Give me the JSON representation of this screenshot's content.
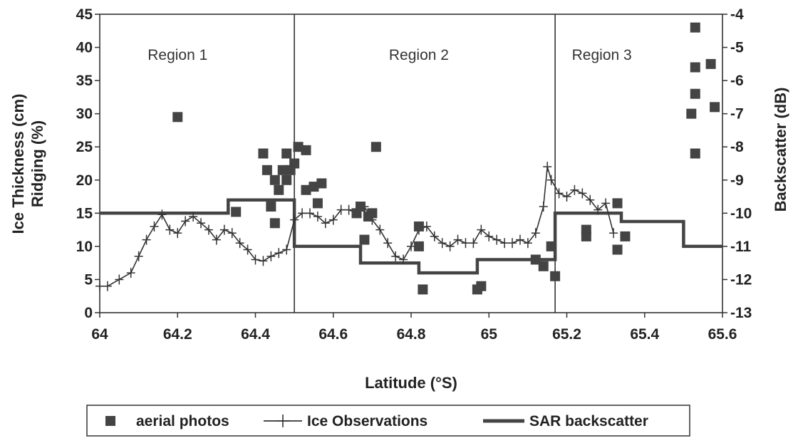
{
  "chart_data": {
    "type": "scatter",
    "title": "",
    "xlabel": "Latitude (°S)",
    "ylabel": [
      "Ice Thickness (cm)",
      "Ridging (%)"
    ],
    "y2label": "Backscatter (dB)",
    "xlim": [
      64,
      65.6
    ],
    "ylim": [
      0,
      45
    ],
    "y2lim": [
      -13,
      -4
    ],
    "x_ticks": [
      "64",
      "64.2",
      "64.4",
      "64.6",
      "64.8",
      "65",
      "65.2",
      "65.4",
      "65.6"
    ],
    "y_ticks": [
      "0",
      "5",
      "10",
      "15",
      "20",
      "25",
      "30",
      "35",
      "40",
      "45"
    ],
    "y2_ticks": [
      "-13",
      "-12",
      "-11",
      "-10",
      "-9",
      "-8",
      "-7",
      "-6",
      "-5",
      "-4"
    ],
    "region_boundaries": [
      64.5,
      65.17
    ],
    "regions": [
      {
        "label": "Region 1",
        "x": 64.2
      },
      {
        "label": "Region 2",
        "x": 64.82
      },
      {
        "label": "Region 3",
        "x": 65.29
      }
    ],
    "grid": false,
    "legend_position": "bottom",
    "series": [
      {
        "name": "aerial photos",
        "kind": "scatter",
        "axis": "left",
        "points": [
          [
            64.2,
            29.5
          ],
          [
            64.35,
            15.2
          ],
          [
            64.42,
            24
          ],
          [
            64.43,
            21.5
          ],
          [
            64.44,
            16
          ],
          [
            64.45,
            13.5
          ],
          [
            64.45,
            20
          ],
          [
            64.46,
            18.5
          ],
          [
            64.47,
            21.5
          ],
          [
            64.48,
            24
          ],
          [
            64.48,
            20
          ],
          [
            64.49,
            21.5
          ],
          [
            64.5,
            22.5
          ],
          [
            64.51,
            25
          ],
          [
            64.53,
            24.5
          ],
          [
            64.53,
            18.5
          ],
          [
            64.55,
            19
          ],
          [
            64.57,
            19.5
          ],
          [
            64.56,
            16.5
          ],
          [
            64.66,
            15
          ],
          [
            64.67,
            16
          ],
          [
            64.68,
            11
          ],
          [
            64.69,
            14.5
          ],
          [
            64.71,
            25
          ],
          [
            64.7,
            15
          ],
          [
            64.82,
            10
          ],
          [
            64.82,
            13
          ],
          [
            64.83,
            3.5
          ],
          [
            64.97,
            3.5
          ],
          [
            64.98,
            4
          ],
          [
            65.12,
            8
          ],
          [
            65.14,
            7
          ],
          [
            65.16,
            10
          ],
          [
            65.17,
            5.5
          ],
          [
            65.25,
            11.5
          ],
          [
            65.25,
            12.5
          ],
          [
            65.33,
            9.5
          ],
          [
            65.33,
            16.5
          ],
          [
            65.35,
            11.5
          ],
          [
            65.52,
            30
          ],
          [
            65.53,
            33
          ],
          [
            65.53,
            37
          ],
          [
            65.53,
            24
          ],
          [
            65.53,
            43
          ],
          [
            65.57,
            37.5
          ],
          [
            65.58,
            31
          ]
        ]
      },
      {
        "name": "Ice Observations",
        "kind": "line-with-plus",
        "axis": "left",
        "points": [
          [
            64,
            4
          ],
          [
            64.02,
            4
          ],
          [
            64.05,
            5
          ],
          [
            64.08,
            6
          ],
          [
            64.1,
            8.5
          ],
          [
            64.12,
            11
          ],
          [
            64.14,
            13
          ],
          [
            64.16,
            14.8
          ],
          [
            64.18,
            12.5
          ],
          [
            64.2,
            12
          ],
          [
            64.22,
            13.8
          ],
          [
            64.24,
            14.5
          ],
          [
            64.26,
            13.5
          ],
          [
            64.28,
            12.5
          ],
          [
            64.3,
            11
          ],
          [
            64.32,
            12.5
          ],
          [
            64.34,
            12
          ],
          [
            64.36,
            10.5
          ],
          [
            64.38,
            9.5
          ],
          [
            64.4,
            8
          ],
          [
            64.42,
            7.8
          ],
          [
            64.44,
            8.5
          ],
          [
            64.46,
            9
          ],
          [
            64.48,
            9.5
          ],
          [
            64.5,
            14
          ],
          [
            64.52,
            15
          ],
          [
            64.54,
            15
          ],
          [
            64.56,
            14.5
          ],
          [
            64.58,
            13.5
          ],
          [
            64.6,
            14
          ],
          [
            64.62,
            15.5
          ],
          [
            64.64,
            15.5
          ],
          [
            64.66,
            15
          ],
          [
            64.68,
            16
          ],
          [
            64.7,
            14
          ],
          [
            64.72,
            12.5
          ],
          [
            64.74,
            10.5
          ],
          [
            64.76,
            8.5
          ],
          [
            64.78,
            8
          ],
          [
            64.8,
            10
          ],
          [
            64.82,
            12.5
          ],
          [
            64.84,
            13
          ],
          [
            64.86,
            11.5
          ],
          [
            64.88,
            10.5
          ],
          [
            64.9,
            10
          ],
          [
            64.92,
            11
          ],
          [
            64.94,
            10.5
          ],
          [
            64.96,
            10.5
          ],
          [
            64.98,
            12.5
          ],
          [
            65,
            11.5
          ],
          [
            65.02,
            11
          ],
          [
            65.04,
            10.5
          ],
          [
            65.06,
            10.5
          ],
          [
            65.08,
            11
          ],
          [
            65.1,
            10.5
          ],
          [
            65.12,
            12
          ],
          [
            65.14,
            16
          ],
          [
            65.15,
            22
          ],
          [
            65.16,
            20
          ],
          [
            65.18,
            18
          ],
          [
            65.2,
            17.5
          ],
          [
            65.22,
            18.5
          ],
          [
            65.24,
            18
          ],
          [
            65.26,
            17
          ],
          [
            65.28,
            15.5
          ],
          [
            65.3,
            16.5
          ],
          [
            65.32,
            12
          ]
        ]
      },
      {
        "name": "SAR backscatter",
        "kind": "step",
        "axis": "right",
        "points": [
          [
            64,
            -10
          ],
          [
            64.33,
            -10
          ],
          [
            64.33,
            -9.6
          ],
          [
            64.5,
            -9.6
          ],
          [
            64.5,
            -11
          ],
          [
            64.67,
            -11
          ],
          [
            64.67,
            -11.5
          ],
          [
            64.82,
            -11.5
          ],
          [
            64.82,
            -11.8
          ],
          [
            64.97,
            -11.8
          ],
          [
            64.97,
            -11.4
          ],
          [
            65.17,
            -11.4
          ],
          [
            65.17,
            -10
          ],
          [
            65.34,
            -10
          ],
          [
            65.34,
            -10.25
          ],
          [
            65.5,
            -10.25
          ],
          [
            65.5,
            -11
          ],
          [
            65.6,
            -11
          ]
        ]
      }
    ]
  }
}
